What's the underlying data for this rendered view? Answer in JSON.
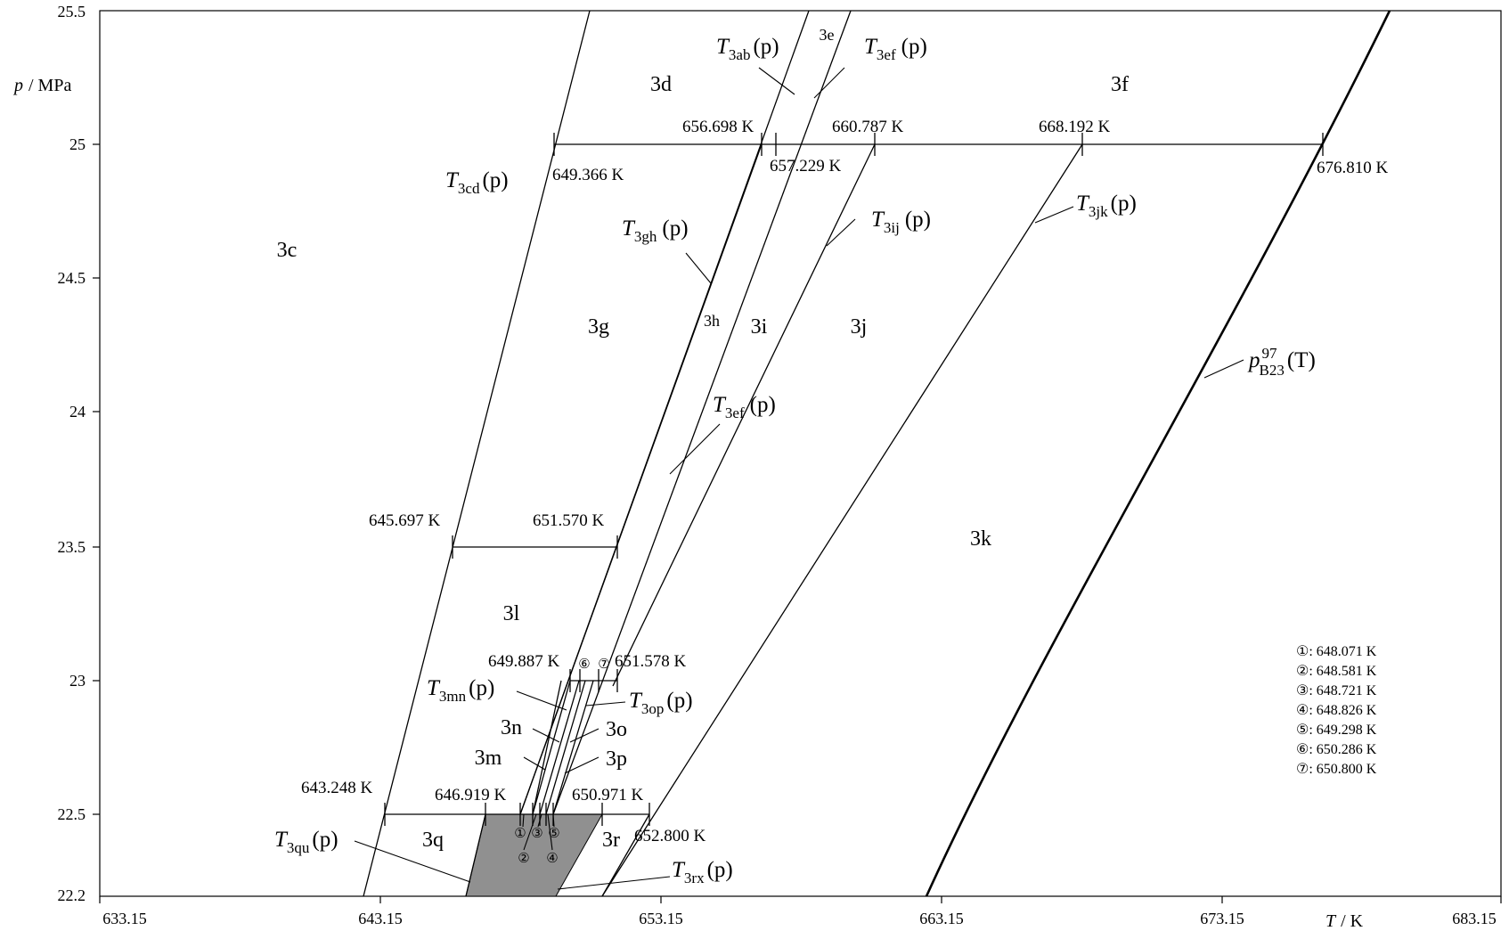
{
  "axes": {
    "x_label_var": "T",
    "x_label_unit": "/ K",
    "y_label_var": "p",
    "y_label_unit": "/ MPa",
    "x_ticks": [
      "633.15",
      "643.15",
      "653.15",
      "663.15",
      "673.15",
      "683.15"
    ],
    "y_ticks": [
      "25.5",
      "25",
      "24.5",
      "24",
      "23.5",
      "23",
      "22.5",
      "22.2"
    ]
  },
  "regions": {
    "r3c": "3c",
    "r3d": "3d",
    "r3e": "3e",
    "r3f": "3f",
    "r3g": "3g",
    "r3h": "3h",
    "r3i": "3i",
    "r3j": "3j",
    "r3k": "3k",
    "r3l": "3l",
    "r3m": "3m",
    "r3n": "3n",
    "r3o": "3o",
    "r3p": "3p",
    "r3q": "3q",
    "r3r": "3r"
  },
  "curves": {
    "cd": {
      "sym": "T",
      "sub": "3cd",
      "arg": "(p)"
    },
    "ab": {
      "sym": "T",
      "sub": "3ab",
      "arg": "(p)"
    },
    "ef_top": {
      "sym": "T",
      "sub": "3ef",
      "arg": "(p)"
    },
    "ef_mid": {
      "sym": "T",
      "sub": "3ef",
      "arg": "(p)"
    },
    "gh": {
      "sym": "T",
      "sub": "3gh",
      "arg": "(p)"
    },
    "ij": {
      "sym": "T",
      "sub": "3ij",
      "arg": "(p)"
    },
    "jk": {
      "sym": "T",
      "sub": "3jk",
      "arg": "(p)"
    },
    "mn": {
      "sym": "T",
      "sub": "3mn",
      "arg": "(p)"
    },
    "op": {
      "sym": "T",
      "sub": "3op",
      "arg": "(p)"
    },
    "qu": {
      "sym": "T",
      "sub": "3qu",
      "arg": "(p)"
    },
    "rx": {
      "sym": "T",
      "sub": "3rx",
      "arg": "(p)"
    },
    "b23": {
      "sym": "p",
      "sup": "97",
      "sub": "B23",
      "arg": "(T)"
    }
  },
  "temps": {
    "t649366": "649.366 K",
    "t656698": "656.698 K",
    "t657229": "657.229 K",
    "t660787": "660.787 K",
    "t668192": "668.192 K",
    "t676810": "676.810 K",
    "t645697": "645.697 K",
    "t651570": "651.570 K",
    "t649887": "649.887 K",
    "t651578": "651.578 K",
    "t643248": "643.248 K",
    "t646919": "646.919 K",
    "t650971": "650.971 K",
    "t652800": "652.800 K"
  },
  "markers": {
    "m1": "①",
    "m2": "②",
    "m3": "③",
    "m4": "④",
    "m5": "⑤",
    "m6": "⑥",
    "m7": "⑦"
  },
  "legend": [
    "①: 648.071 K",
    "②: 648.581 K",
    "③: 648.721 K",
    "④: 648.826 K",
    "⑤: 649.298 K",
    "⑥: 650.286 K",
    "⑦: 650.800 K"
  ]
}
